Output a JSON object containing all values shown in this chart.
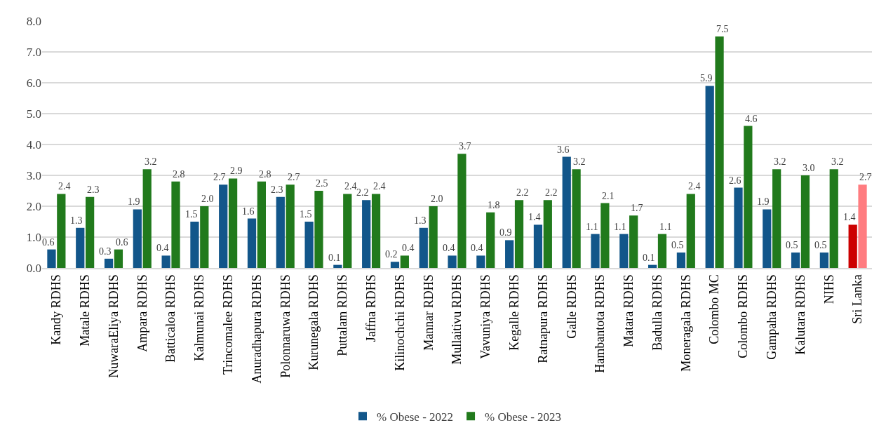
{
  "chart_data": {
    "type": "bar",
    "categories": [
      "Kandy RDHS",
      "Matale RDHS",
      "NuwaraEliya RDHS",
      "Ampara RDHS",
      "Batticaloa RDHS",
      "Kalmunai RDHS",
      "Trincomalee RDHS",
      "Anuradhapura RDHS",
      "Polonnaruwa RDHS",
      "Kurunegala RDHS",
      "Puttalam RDHS",
      "Jaffna RDHS",
      "Kilinochchi RDHS",
      "Mannar RDHS",
      "Mullaitivu RDHS",
      "Vavuniya RDHS",
      "Kegalle RDHS",
      "Ratnapura RDHS",
      "Galle RDHS",
      "Hambantota RDHS",
      "Matara RDHS",
      "Badulla RDHS",
      "Moneragala RDHS",
      "Colombo MC",
      "Colombo RDHS",
      "Gampaha RDHS",
      "Kalutara RDHS",
      "NIHS",
      "Sri Lanka"
    ],
    "series": [
      {
        "name": "% Obese - 2022",
        "color": "#12568a",
        "colors": [
          null,
          null,
          null,
          null,
          null,
          null,
          null,
          null,
          null,
          null,
          null,
          null,
          null,
          null,
          null,
          null,
          null,
          null,
          null,
          null,
          null,
          null,
          null,
          null,
          null,
          null,
          null,
          null,
          "#cc0000"
        ],
        "values": [
          0.6,
          1.3,
          0.3,
          1.9,
          0.4,
          1.5,
          2.7,
          1.6,
          2.3,
          1.5,
          0.1,
          2.2,
          0.2,
          1.3,
          0.4,
          0.4,
          0.9,
          1.4,
          3.6,
          1.1,
          1.1,
          0.1,
          0.5,
          5.9,
          2.6,
          1.9,
          0.5,
          0.5,
          1.4
        ],
        "value_labels": [
          "0.6",
          "1.3",
          "0.3",
          "1.9",
          "0.4",
          "1.5",
          "2.7",
          "1.6",
          "2.3",
          "1.5",
          "0.1",
          "2.2",
          "0.2",
          "1.3",
          "0.4",
          "0.4",
          "0.9",
          "1.4",
          "3.6",
          "1.1",
          "1.1",
          "0.1",
          "0.5",
          "5.9",
          "2.6",
          "1.9",
          "0.5",
          "0.5",
          "1.4"
        ]
      },
      {
        "name": "% Obese - 2023",
        "color": "#217a1c",
        "colors": [
          null,
          null,
          null,
          null,
          null,
          null,
          null,
          null,
          null,
          null,
          null,
          null,
          null,
          null,
          null,
          null,
          null,
          null,
          null,
          null,
          null,
          null,
          null,
          null,
          null,
          null,
          null,
          null,
          "#ff7c80"
        ],
        "values": [
          2.4,
          2.3,
          0.6,
          3.2,
          2.8,
          2.0,
          2.9,
          2.8,
          2.7,
          2.5,
          2.4,
          2.4,
          0.4,
          2.0,
          3.7,
          1.8,
          2.2,
          2.2,
          3.2,
          2.1,
          1.7,
          1.1,
          2.4,
          7.5,
          4.6,
          3.2,
          3.0,
          3.2,
          2.7
        ],
        "value_labels": [
          "2.4",
          "2.3",
          "0.6",
          "3.2",
          "2.8",
          "2.0",
          "2.9",
          "2.8",
          "2.7",
          "2.5",
          "2.4",
          "2.4",
          "0.4",
          "2.0",
          "3.7",
          "1.8",
          "2.2",
          "2.2",
          "3.2",
          "2.1",
          "1.7",
          "1.1",
          "2.4",
          "7.5",
          "4.6",
          "3.2",
          "3.0",
          "3.2",
          "2.7"
        ]
      }
    ],
    "ylim": [
      0,
      8
    ],
    "yticks": [
      {
        "value": 0,
        "label": "0.0"
      },
      {
        "value": 1,
        "label": "1.0"
      },
      {
        "value": 2,
        "label": "2.0"
      },
      {
        "value": 3,
        "label": "3.0"
      },
      {
        "value": 4,
        "label": "4.0"
      },
      {
        "value": 5,
        "label": "5.0"
      },
      {
        "value": 6,
        "label": "6.0"
      },
      {
        "value": 7,
        "label": "7.0"
      },
      {
        "value": 8,
        "label": "8.0"
      }
    ],
    "grid": "y",
    "legend": "bottom"
  }
}
